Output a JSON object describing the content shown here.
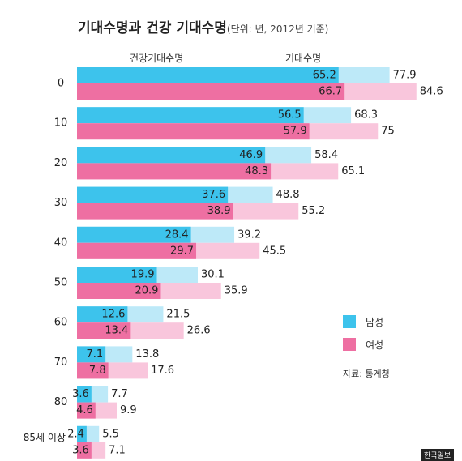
{
  "title": "기대수명과 건강 기대수명",
  "unit_note": "(단위: 년, 2012년 기준)",
  "col_headers": {
    "healthy": "건강기대수명",
    "total": "기대수명"
  },
  "legend": {
    "male": "남성",
    "female": "여성"
  },
  "source": "자료: 통계청",
  "logo": "한국일보",
  "colors": {
    "male_healthy": "#3dc3ec",
    "male_total": "#bde9f8",
    "female_healthy": "#ee6fa2",
    "female_total": "#f9c6dc"
  },
  "chart_data": {
    "type": "bar",
    "orientation": "horizontal",
    "categories": [
      "0",
      "10",
      "20",
      "30",
      "40",
      "50",
      "60",
      "70",
      "80",
      "85세 이상"
    ],
    "series": [
      {
        "name": "남성",
        "healthy": [
          65.2,
          56.5,
          46.9,
          37.6,
          28.4,
          19.9,
          12.6,
          7.1,
          3.6,
          2.4
        ],
        "total": [
          77.9,
          68.3,
          58.4,
          48.8,
          39.2,
          30.1,
          21.5,
          13.8,
          7.7,
          5.5
        ]
      },
      {
        "name": "여성",
        "healthy": [
          66.7,
          57.9,
          48.3,
          38.9,
          29.7,
          20.9,
          13.4,
          7.8,
          4.6,
          3.6
        ],
        "total": [
          84.6,
          75,
          65.1,
          55.2,
          45.5,
          35.9,
          26.6,
          17.6,
          9.9,
          7.1
        ]
      }
    ]
  }
}
